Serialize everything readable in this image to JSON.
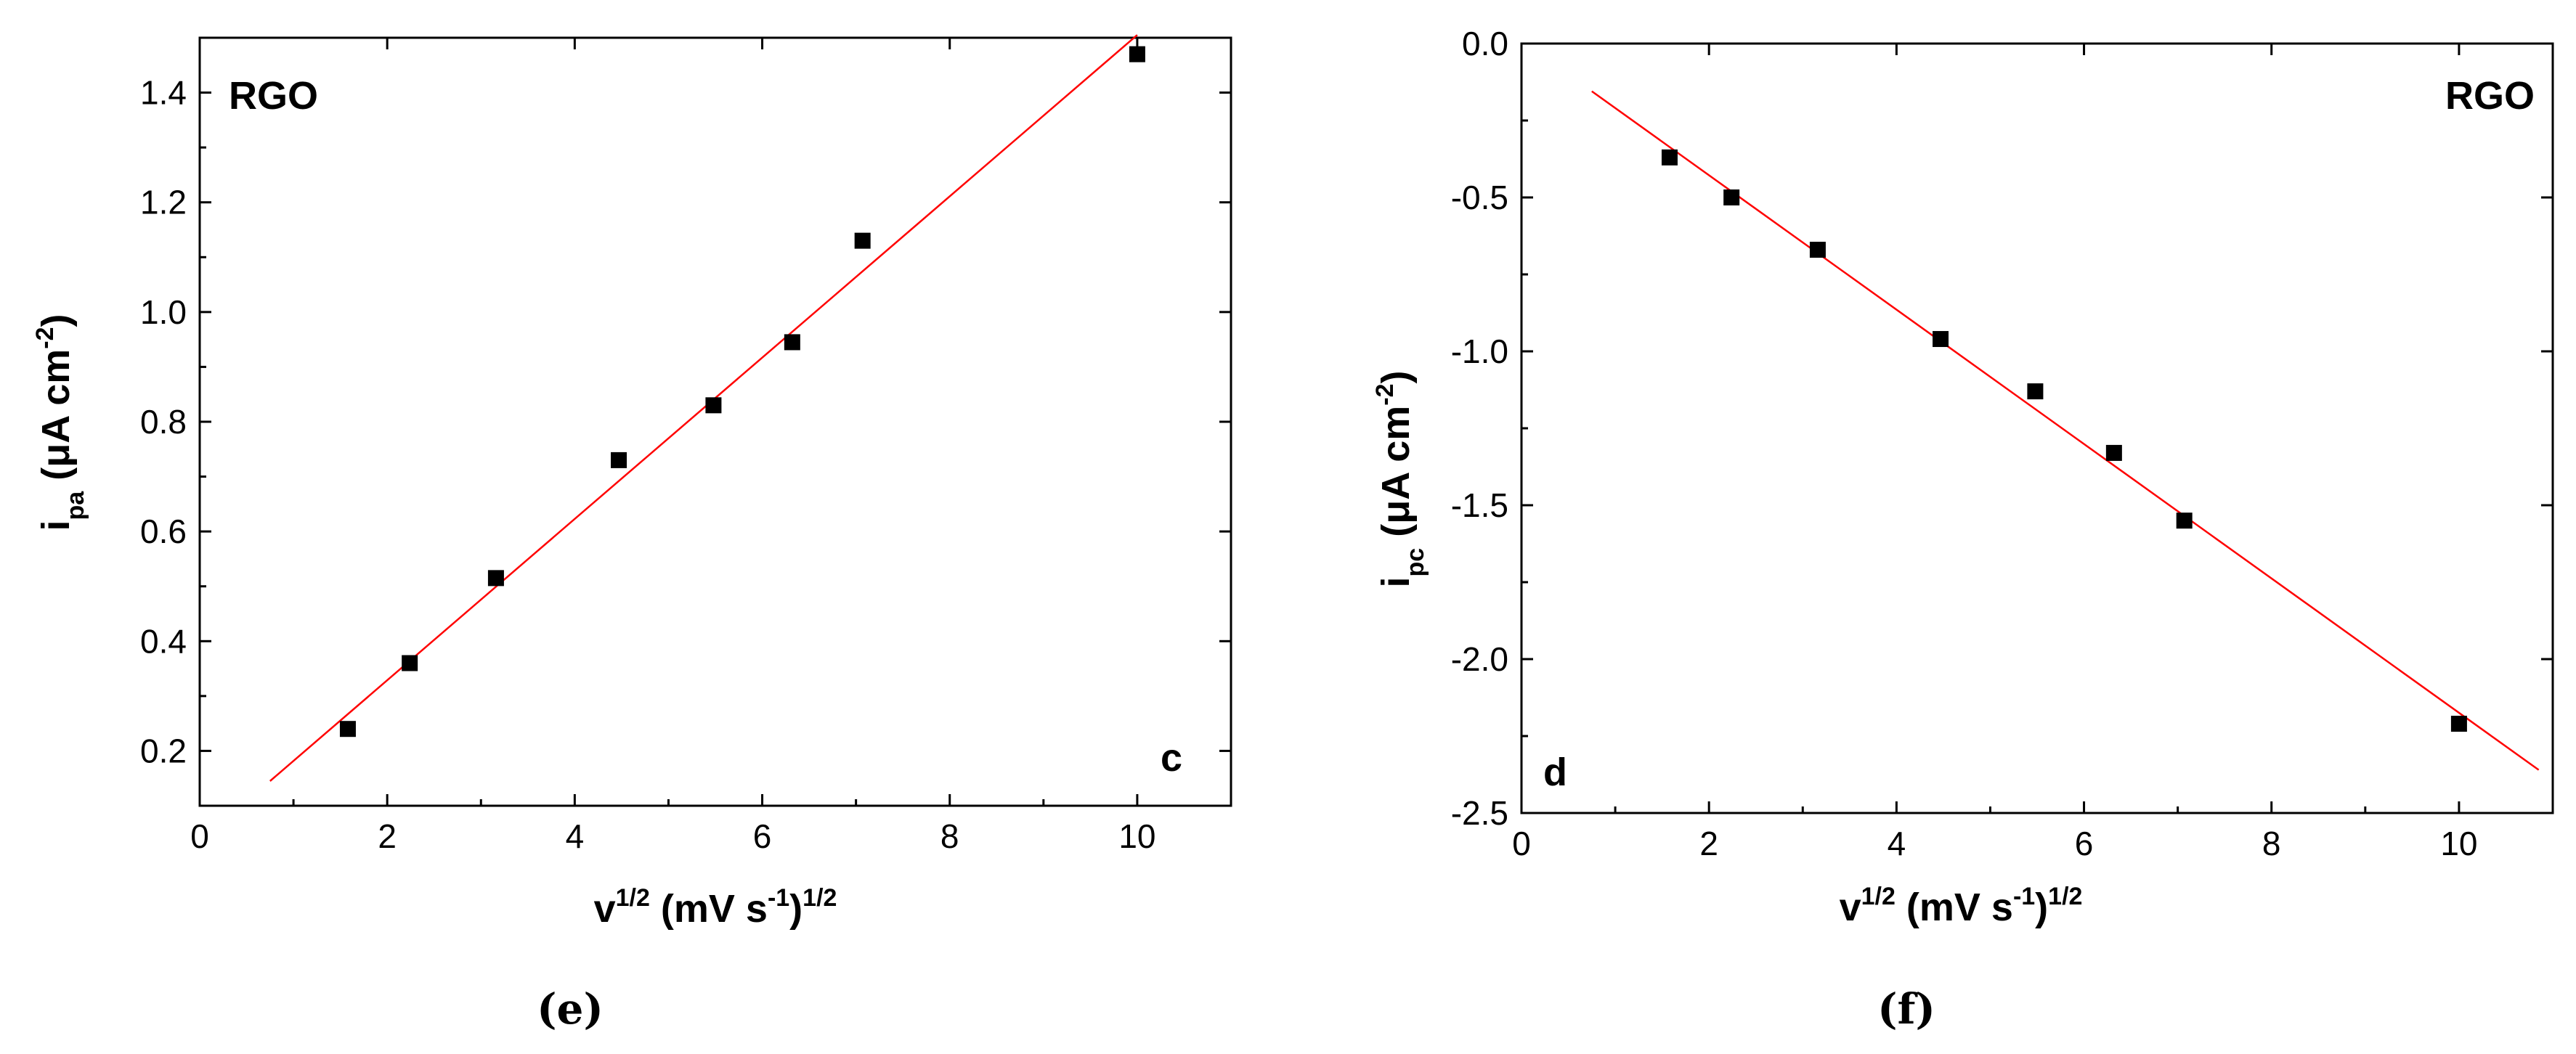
{
  "chart_data": [
    {
      "type": "scatter",
      "series": [
        {
          "x": [
            1.58,
            2.24,
            3.16,
            4.47,
            5.48,
            6.32,
            7.07,
            10.0
          ],
          "y": [
            0.24,
            0.36,
            0.515,
            0.73,
            0.83,
            0.945,
            1.13,
            1.47
          ]
        }
      ],
      "fit_line": {
        "x": [
          0.75,
          10.0
        ],
        "y": [
          0.145,
          1.505
        ],
        "color": "#ff0000"
      },
      "xlim": [
        0,
        11
      ],
      "ylim": [
        0.1,
        1.5
      ],
      "x_ticks": [
        "0",
        "2",
        "4",
        "6",
        "8",
        "10"
      ],
      "y_ticks": [
        "0.2",
        "0.4",
        "0.6",
        "0.8",
        "1.0",
        "1.2",
        "1.4"
      ],
      "y_tick_values": [
        0.2,
        0.4,
        0.6,
        0.8,
        1.0,
        1.2,
        1.4
      ],
      "x_tick_values": [
        0,
        2,
        4,
        6,
        8,
        10
      ],
      "xlabel": {
        "main": "v",
        "sup1": "1/2",
        "mid": " (mV s",
        "sup2": "-1",
        "close": ")",
        "sup3": "1/2"
      },
      "ylabel": {
        "main": "i",
        "sub": "pa",
        "mid": " (μA cm",
        "sup": "-2",
        "close": ")"
      },
      "annotations": {
        "material": "RGO",
        "corner": "c"
      },
      "panel_label": "(e)",
      "grid": false,
      "marker_color": "#000000"
    },
    {
      "type": "scatter",
      "series": [
        {
          "x": [
            1.58,
            2.24,
            3.16,
            4.47,
            5.48,
            6.32,
            7.07,
            10.0
          ],
          "y": [
            -0.37,
            -0.5,
            -0.67,
            -0.96,
            -1.13,
            -1.33,
            -1.55,
            -2.21
          ]
        }
      ],
      "fit_line": {
        "x": [
          0.75,
          10.85
        ],
        "y": [
          -0.155,
          -2.36
        ],
        "color": "#ff0000"
      },
      "xlim": [
        0,
        11
      ],
      "ylim": [
        -2.5,
        0.0
      ],
      "x_ticks": [
        "0",
        "2",
        "4",
        "6",
        "8",
        "10"
      ],
      "y_ticks": [
        "0.0",
        "-0.5",
        "-1.0",
        "-1.5",
        "-2.0",
        "-2.5"
      ],
      "y_tick_values": [
        0.0,
        -0.5,
        -1.0,
        -1.5,
        -2.0,
        -2.5
      ],
      "x_tick_values": [
        0,
        2,
        4,
        6,
        8,
        10
      ],
      "xlabel": {
        "main": "v",
        "sup1": "1/2",
        "mid": " (mV s",
        "sup2": "-1",
        "close": ")",
        "sup3": "1/2"
      },
      "ylabel": {
        "main": "i",
        "sub": "pc",
        "mid": " (μA cm",
        "sup": "-2",
        "close": ")"
      },
      "annotations": {
        "material": "RGO",
        "corner": "d"
      },
      "panel_label": "(f)",
      "grid": false,
      "marker_color": "#000000"
    }
  ]
}
